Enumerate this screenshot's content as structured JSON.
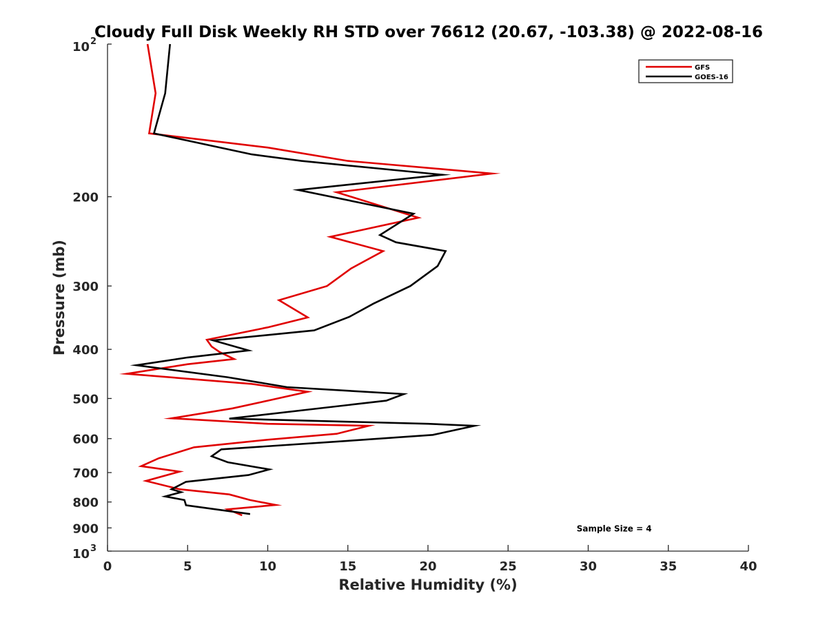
{
  "chart_data": {
    "type": "line",
    "title": "Cloudy Full Disk Weekly RH STD over 76612 (20.67, -103.38) @ 2022-08-16",
    "xlabel": "Relative Humidity (%)",
    "ylabel": "Pressure (mb)",
    "xlim": [
      0,
      40
    ],
    "ylim": [
      100,
      1000
    ],
    "yscale": "log",
    "y_reversed": true,
    "grid": false,
    "legend_position": "top-right",
    "x_ticks": [
      "0",
      "5",
      "10",
      "15",
      "20",
      "25",
      "30",
      "35",
      "40"
    ],
    "y_ticks": [
      {
        "value": 100,
        "base": "10",
        "exp": "2"
      },
      {
        "value": 200,
        "label": "200"
      },
      {
        "value": 300,
        "label": "300"
      },
      {
        "value": 400,
        "label": "400"
      },
      {
        "value": 500,
        "label": "500"
      },
      {
        "value": 600,
        "label": "600"
      },
      {
        "value": 700,
        "label": "700"
      },
      {
        "value": 800,
        "label": "800"
      },
      {
        "value": 900,
        "label": "900"
      },
      {
        "value": 1000,
        "base": "10",
        "exp": "3"
      }
    ],
    "series": [
      {
        "name": "GFS",
        "color": "#e00000",
        "points": [
          [
            2.5,
            100
          ],
          [
            3.0,
            125
          ],
          [
            2.6,
            150
          ],
          [
            10.0,
            160
          ],
          [
            15.0,
            170
          ],
          [
            24.0,
            180
          ],
          [
            14.3,
            196
          ],
          [
            19.4,
            220
          ],
          [
            13.9,
            240
          ],
          [
            17.2,
            256
          ],
          [
            15.2,
            277
          ],
          [
            13.7,
            300
          ],
          [
            10.7,
            320
          ],
          [
            12.5,
            346
          ],
          [
            10.0,
            362
          ],
          [
            6.2,
            383
          ],
          [
            6.5,
            395
          ],
          [
            7.0,
            405
          ],
          [
            7.9,
            418
          ],
          [
            5.0,
            428
          ],
          [
            1.2,
            447
          ],
          [
            9.0,
            468
          ],
          [
            12.5,
            485
          ],
          [
            10.0,
            505
          ],
          [
            7.8,
            523
          ],
          [
            4.0,
            547
          ],
          [
            10.0,
            561
          ],
          [
            16.3,
            566
          ],
          [
            14.3,
            587
          ],
          [
            10.0,
            603
          ],
          [
            5.4,
            624
          ],
          [
            3.2,
            656
          ],
          [
            2.1,
            680
          ],
          [
            4.5,
            697
          ],
          [
            2.4,
            727
          ],
          [
            4.5,
            755
          ],
          [
            7.6,
            773
          ],
          [
            8.9,
            793
          ],
          [
            10.5,
            811
          ],
          [
            7.5,
            827
          ],
          [
            8.4,
            850
          ]
        ]
      },
      {
        "name": "GOES-16",
        "color": "#000000",
        "points": [
          [
            3.9,
            100
          ],
          [
            3.6,
            125
          ],
          [
            2.9,
            150
          ],
          [
            9.0,
            165
          ],
          [
            12.1,
            170
          ],
          [
            20.9,
            181
          ],
          [
            11.9,
            194
          ],
          [
            19.1,
            216
          ],
          [
            17.0,
            238
          ],
          [
            18.0,
            246
          ],
          [
            21.1,
            256
          ],
          [
            20.6,
            274
          ],
          [
            18.9,
            300
          ],
          [
            16.6,
            325
          ],
          [
            15.1,
            345
          ],
          [
            12.9,
            367
          ],
          [
            6.6,
            384
          ],
          [
            8.8,
            402
          ],
          [
            5.0,
            415
          ],
          [
            1.8,
            430
          ],
          [
            7.5,
            454
          ],
          [
            11.2,
            475
          ],
          [
            18.5,
            490
          ],
          [
            17.4,
            505
          ],
          [
            7.6,
            548
          ],
          [
            20.0,
            561
          ],
          [
            22.9,
            566
          ],
          [
            20.3,
            590
          ],
          [
            15.0,
            606
          ],
          [
            7.1,
            630
          ],
          [
            6.5,
            650
          ],
          [
            7.5,
            668
          ],
          [
            10.1,
            690
          ],
          [
            8.8,
            708
          ],
          [
            4.9,
            730
          ],
          [
            4.0,
            755
          ],
          [
            4.6,
            765
          ],
          [
            3.6,
            780
          ],
          [
            4.8,
            793
          ],
          [
            4.9,
            812
          ],
          [
            8.9,
            845
          ]
        ]
      }
    ],
    "annotations": [
      {
        "text": "Sample Size = 4",
        "x": 35.0,
        "y": 900
      }
    ]
  }
}
